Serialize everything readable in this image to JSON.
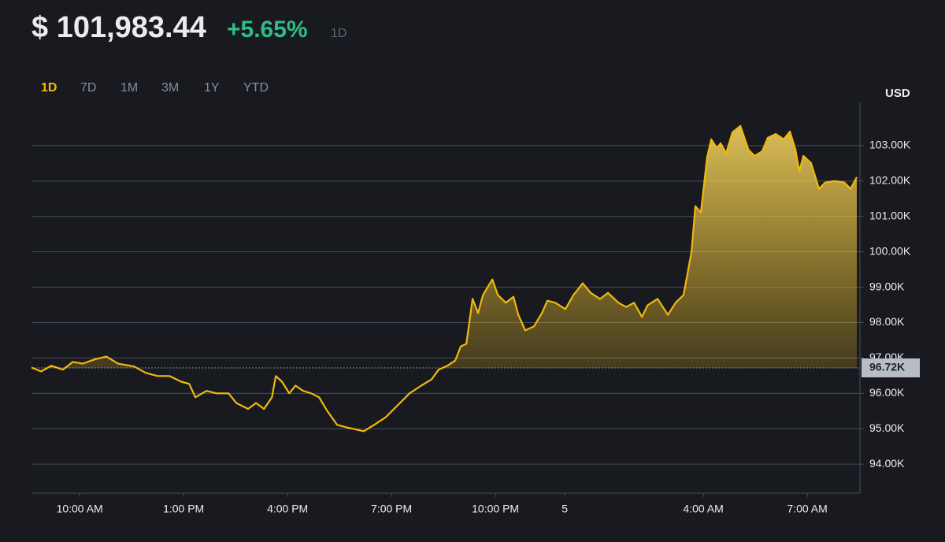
{
  "header": {
    "price": "$ 101,983.44",
    "change": "+5.65%",
    "period": "1D",
    "tabs": [
      "1D",
      "7D",
      "1M",
      "3M",
      "1Y",
      "YTD"
    ],
    "active_tab": 0
  },
  "chart_data": {
    "type": "line",
    "ylabel": "USD",
    "color": "#f0b90b",
    "grid": true,
    "x": [
      8.61,
      8.89,
      9.18,
      9.52,
      9.8,
      10.09,
      10.43,
      10.77,
      11.11,
      11.57,
      11.91,
      12.25,
      12.59,
      12.93,
      13.16,
      13.34,
      13.66,
      13.95,
      14.3,
      14.52,
      14.86,
      15.09,
      15.32,
      15.55,
      15.66,
      15.84,
      16.05,
      16.23,
      16.45,
      16.68,
      16.91,
      17.14,
      17.43,
      17.7,
      17.93,
      18.2,
      18.5,
      18.84,
      19.07,
      19.3,
      19.52,
      19.86,
      20.16,
      20.36,
      20.61,
      20.84,
      21.0,
      21.16,
      21.34,
      21.5,
      21.64,
      21.91,
      22.07,
      22.3,
      22.52,
      22.66,
      22.86,
      23.11,
      23.34,
      23.5,
      23.73,
      24.02,
      24.25,
      24.52,
      24.75,
      25.02,
      25.25,
      25.55,
      25.77,
      26.0,
      26.23,
      26.39,
      26.68,
      26.98,
      27.2,
      27.43,
      27.66,
      27.77,
      27.93,
      28.11,
      28.23,
      28.39,
      28.5,
      28.66,
      28.84,
      29.07,
      29.3,
      29.48,
      29.7,
      29.86,
      30.09,
      30.32,
      30.5,
      30.66,
      30.77,
      30.89,
      31.11,
      31.34,
      31.52,
      31.8,
      32.07,
      32.25,
      32.43
    ],
    "values": [
      96730,
      96620,
      96780,
      96670,
      96890,
      96840,
      96960,
      97040,
      96840,
      96760,
      96580,
      96490,
      96490,
      96330,
      96270,
      95890,
      96070,
      96000,
      96000,
      95730,
      95560,
      95730,
      95560,
      95890,
      96490,
      96330,
      96000,
      96220,
      96070,
      96000,
      95890,
      95510,
      95110,
      95040,
      94990,
      94930,
      95110,
      95330,
      95560,
      95780,
      96000,
      96220,
      96400,
      96670,
      96780,
      96930,
      97330,
      97400,
      98670,
      98270,
      98780,
      99220,
      98780,
      98560,
      98730,
      98220,
      97780,
      97890,
      98270,
      98620,
      98560,
      98380,
      98780,
      99110,
      98840,
      98670,
      98840,
      98560,
      98440,
      98560,
      98160,
      98490,
      98670,
      98220,
      98560,
      98780,
      100000,
      101290,
      101110,
      102670,
      103180,
      102930,
      103070,
      102780,
      103380,
      103560,
      102890,
      102710,
      102840,
      103220,
      103330,
      103180,
      103400,
      102890,
      102270,
      102710,
      102510,
      101780,
      101960,
      102000,
      101960,
      101780,
      102110
    ],
    "xlim": [
      8.61,
      32.43
    ],
    "xticks": [
      {
        "value": 10,
        "label": "10:00 AM"
      },
      {
        "value": 13,
        "label": "1:00 PM"
      },
      {
        "value": 16,
        "label": "4:00 PM"
      },
      {
        "value": 19,
        "label": "7:00 PM"
      },
      {
        "value": 22,
        "label": "10:00 PM"
      },
      {
        "value": 24,
        "label": "5"
      },
      {
        "value": 28,
        "label": "4:00 AM"
      },
      {
        "value": 31,
        "label": "7:00 AM"
      }
    ],
    "ylim": [
      93180,
      104000
    ],
    "yticks": [
      {
        "value": 94000,
        "label": "94.00K"
      },
      {
        "value": 95000,
        "label": "95.00K"
      },
      {
        "value": 96000,
        "label": "96.00K"
      },
      {
        "value": 97000,
        "label": "97.00K"
      },
      {
        "value": 98000,
        "label": "98.00K"
      },
      {
        "value": 99000,
        "label": "99.00K"
      },
      {
        "value": 100000,
        "label": "100.00K"
      },
      {
        "value": 101000,
        "label": "101.00K"
      },
      {
        "value": 102000,
        "label": "102.00K"
      },
      {
        "value": 103000,
        "label": "103.00K"
      }
    ],
    "reference_line": {
      "value": 96720,
      "label": "96.72K"
    }
  }
}
